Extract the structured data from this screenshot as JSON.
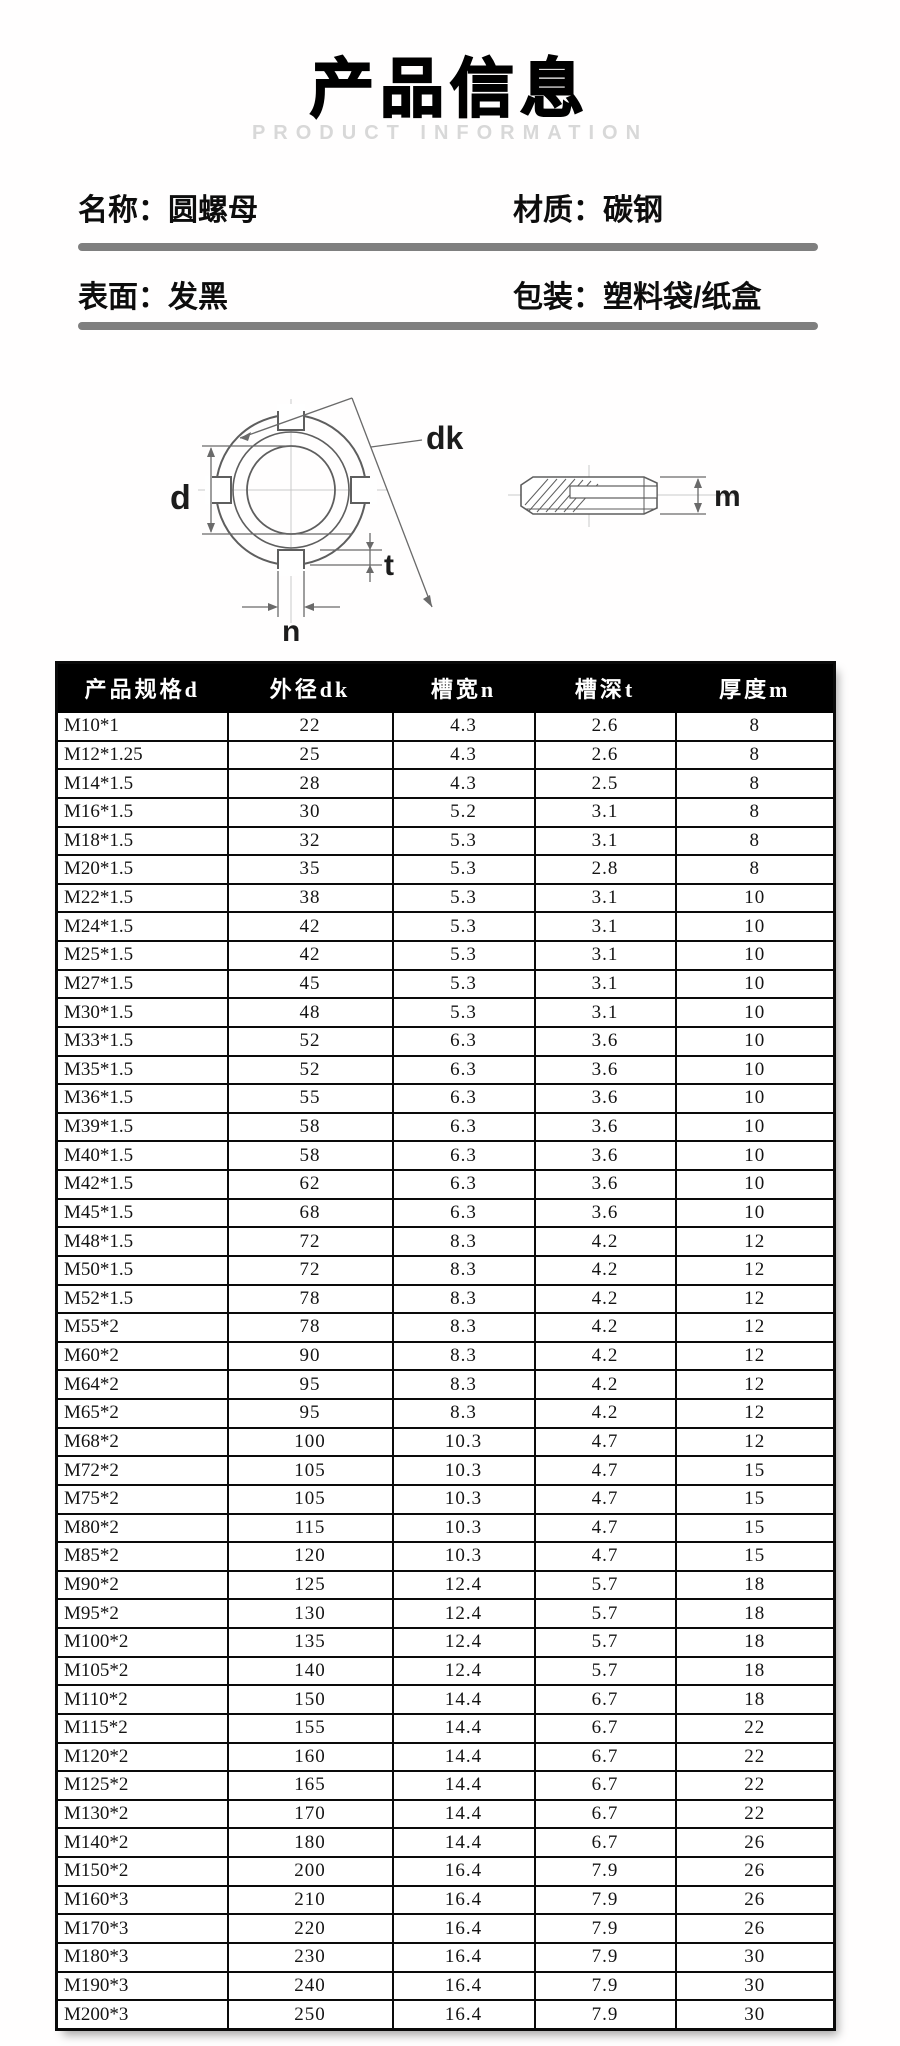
{
  "header": {
    "title": "产品信息",
    "subtitle": "PRODUCT INFORMATION"
  },
  "info": {
    "row1": {
      "left": "名称：圆螺母",
      "right": "材质：碳钢"
    },
    "row2": {
      "left": "表面：发黑",
      "right": "包装：塑料袋/纸盒"
    }
  },
  "diagram": {
    "labels": {
      "outer_diameter": "dk",
      "bore_diameter": "d",
      "slot_depth": "t",
      "slot_width": "n",
      "thickness": "m"
    }
  },
  "table": {
    "columns": [
      "产品规格d",
      "外径dk",
      "槽宽n",
      "槽深t",
      "厚度m"
    ],
    "rows": [
      [
        "M10*1",
        "22",
        "4.3",
        "2.6",
        "8"
      ],
      [
        "M12*1.25",
        "25",
        "4.3",
        "2.6",
        "8"
      ],
      [
        "M14*1.5",
        "28",
        "4.3",
        "2.5",
        "8"
      ],
      [
        "M16*1.5",
        "30",
        "5.2",
        "3.1",
        "8"
      ],
      [
        "M18*1.5",
        "32",
        "5.3",
        "3.1",
        "8"
      ],
      [
        "M20*1.5",
        "35",
        "5.3",
        "2.8",
        "8"
      ],
      [
        "M22*1.5",
        "38",
        "5.3",
        "3.1",
        "10"
      ],
      [
        "M24*1.5",
        "42",
        "5.3",
        "3.1",
        "10"
      ],
      [
        "M25*1.5",
        "42",
        "5.3",
        "3.1",
        "10"
      ],
      [
        "M27*1.5",
        "45",
        "5.3",
        "3.1",
        "10"
      ],
      [
        "M30*1.5",
        "48",
        "5.3",
        "3.1",
        "10"
      ],
      [
        "M33*1.5",
        "52",
        "6.3",
        "3.6",
        "10"
      ],
      [
        "M35*1.5",
        "52",
        "6.3",
        "3.6",
        "10"
      ],
      [
        "M36*1.5",
        "55",
        "6.3",
        "3.6",
        "10"
      ],
      [
        "M39*1.5",
        "58",
        "6.3",
        "3.6",
        "10"
      ],
      [
        "M40*1.5",
        "58",
        "6.3",
        "3.6",
        "10"
      ],
      [
        "M42*1.5",
        "62",
        "6.3",
        "3.6",
        "10"
      ],
      [
        "M45*1.5",
        "68",
        "6.3",
        "3.6",
        "10"
      ],
      [
        "M48*1.5",
        "72",
        "8.3",
        "4.2",
        "12"
      ],
      [
        "M50*1.5",
        "72",
        "8.3",
        "4.2",
        "12"
      ],
      [
        "M52*1.5",
        "78",
        "8.3",
        "4.2",
        "12"
      ],
      [
        "M55*2",
        "78",
        "8.3",
        "4.2",
        "12"
      ],
      [
        "M60*2",
        "90",
        "8.3",
        "4.2",
        "12"
      ],
      [
        "M64*2",
        "95",
        "8.3",
        "4.2",
        "12"
      ],
      [
        "M65*2",
        "95",
        "8.3",
        "4.2",
        "12"
      ],
      [
        "M68*2",
        "100",
        "10.3",
        "4.7",
        "12"
      ],
      [
        "M72*2",
        "105",
        "10.3",
        "4.7",
        "15"
      ],
      [
        "M75*2",
        "105",
        "10.3",
        "4.7",
        "15"
      ],
      [
        "M80*2",
        "115",
        "10.3",
        "4.7",
        "15"
      ],
      [
        "M85*2",
        "120",
        "10.3",
        "4.7",
        "15"
      ],
      [
        "M90*2",
        "125",
        "12.4",
        "5.7",
        "18"
      ],
      [
        "M95*2",
        "130",
        "12.4",
        "5.7",
        "18"
      ],
      [
        "M100*2",
        "135",
        "12.4",
        "5.7",
        "18"
      ],
      [
        "M105*2",
        "140",
        "12.4",
        "5.7",
        "18"
      ],
      [
        "M110*2",
        "150",
        "14.4",
        "6.7",
        "18"
      ],
      [
        "M115*2",
        "155",
        "14.4",
        "6.7",
        "22"
      ],
      [
        "M120*2",
        "160",
        "14.4",
        "6.7",
        "22"
      ],
      [
        "M125*2",
        "165",
        "14.4",
        "6.7",
        "22"
      ],
      [
        "M130*2",
        "170",
        "14.4",
        "6.7",
        "22"
      ],
      [
        "M140*2",
        "180",
        "14.4",
        "6.7",
        "26"
      ],
      [
        "M150*2",
        "200",
        "16.4",
        "7.9",
        "26"
      ],
      [
        "M160*3",
        "210",
        "16.4",
        "7.9",
        "26"
      ],
      [
        "M170*3",
        "220",
        "16.4",
        "7.9",
        "26"
      ],
      [
        "M180*3",
        "230",
        "16.4",
        "7.9",
        "30"
      ],
      [
        "M190*3",
        "240",
        "16.4",
        "7.9",
        "30"
      ],
      [
        "M200*3",
        "250",
        "16.4",
        "7.9",
        "30"
      ]
    ]
  },
  "colors": {
    "rule": "#7f7f7f",
    "table_header_bg": "#000000",
    "table_header_text": "#ffffff",
    "subtitle_text": "#d8d8d8"
  }
}
